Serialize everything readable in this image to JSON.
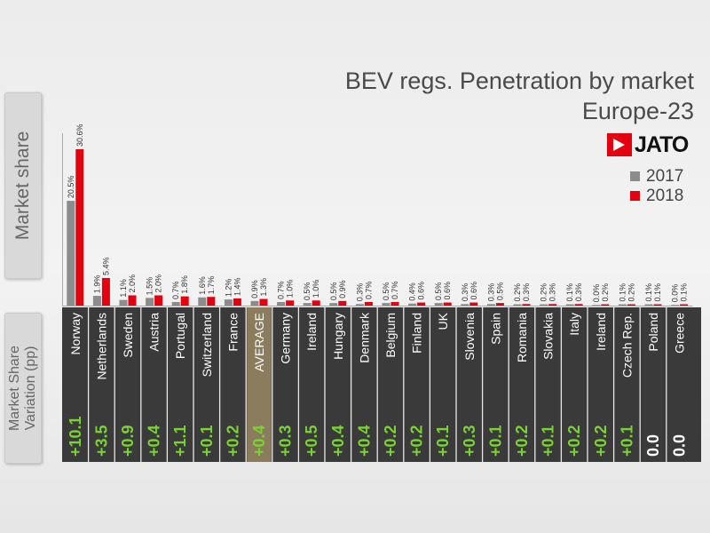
{
  "title_line1": "BEV regs. Penetration by market",
  "title_line2": "Europe-23",
  "logo_text": "JATO",
  "ylabel": "Market share",
  "variation_label": "Market Share\nVariation (pp)",
  "colors": {
    "y2017": "#8c8c8c",
    "y2018": "#e3000f",
    "positive": "#7bd136",
    "zero": "#ffffff",
    "highlight": "#9fd0ff",
    "average_bg": "#8a7c5c"
  },
  "chart_data": {
    "type": "bar",
    "title": "BEV regs. Penetration by market Europe-23",
    "ylabel": "Market share",
    "categories": [
      "Norway",
      "Netherlands",
      "Sweden",
      "Austria",
      "Portugal",
      "Switzerland",
      "France",
      "AVERAGE",
      "Germany",
      "Ireland",
      "Hungary",
      "Denmark",
      "Belgium",
      "Finland",
      "UK",
      "Slovenia",
      "Spain",
      "Romania",
      "Slovakia",
      "Italy",
      "Ireland",
      "Czech Rep.",
      "Poland",
      "Greece"
    ],
    "series": [
      {
        "name": "2017",
        "values": [
          20.5,
          1.9,
          1.1,
          1.5,
          0.7,
          1.6,
          1.2,
          0.9,
          0.7,
          0.5,
          0.5,
          0.3,
          0.5,
          0.4,
          0.5,
          0.3,
          0.3,
          0.2,
          0.2,
          0.1,
          0.0,
          0.1,
          0.1,
          0.0
        ],
        "labels": [
          "20.5%",
          "1.9%",
          "1.1%",
          "1.5%",
          "0.7%",
          "1.6%",
          "1.2%",
          "0.9%",
          "0.7%",
          "0.5%",
          "0.5%",
          "0.3%",
          "0.5%",
          "0.4%",
          "0.5%",
          "0.3%",
          "0.3%",
          "0.2%",
          "0.2%",
          "0.1%",
          "0.0%",
          "0.1%",
          "0.1%",
          "0.0%"
        ]
      },
      {
        "name": "2018",
        "values": [
          30.6,
          5.4,
          2.0,
          2.0,
          1.8,
          1.7,
          1.4,
          1.3,
          1.0,
          1.0,
          0.9,
          0.7,
          0.7,
          0.6,
          0.6,
          0.6,
          0.5,
          0.3,
          0.3,
          0.3,
          0.2,
          0.2,
          0.1,
          0.1
        ],
        "labels": [
          "30.6%",
          "5.4%",
          "2.0%",
          "2.0%",
          "1.8%",
          "1.7%",
          "1.4%",
          "1.3%",
          "1.0%",
          "1.0%",
          "0.9%",
          "0.7%",
          "0.7%",
          "0.6%",
          "0.6%",
          "0.6%",
          "0.5%",
          "0.3%",
          "0.3%",
          "0.3%",
          "0.2%",
          "0.2%",
          "0.1%",
          "0.1%"
        ]
      }
    ],
    "variation": [
      "+10.1",
      "+3.5",
      "+0.9",
      "+0.4",
      "+1.1",
      "+0.1",
      "+0.2",
      "+0.4",
      "+0.3",
      "+0.5",
      "+0.4",
      "+0.4",
      "+0.2",
      "+0.2",
      "+0.1",
      "+0.3",
      "+0.1",
      "+0.2",
      "+0.1",
      "+0.2",
      "+0.2",
      "+0.1",
      "0.0",
      "0.0"
    ],
    "ylim": [
      0,
      32
    ],
    "legend": "right",
    "grid": false
  }
}
